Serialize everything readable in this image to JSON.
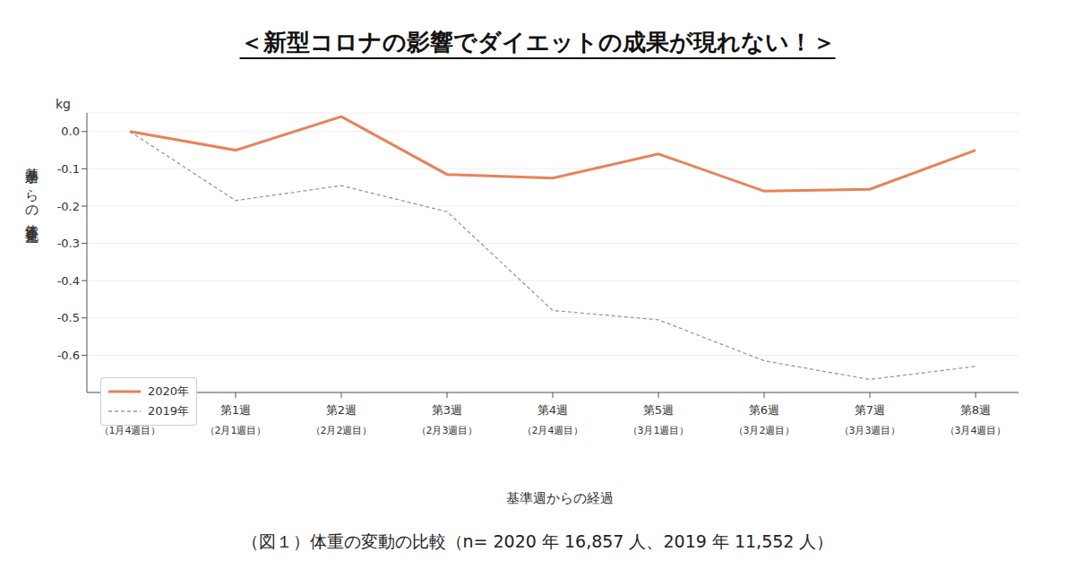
{
  "chart_data": {
    "type": "line",
    "title": "＜新型コロナの影響でダイエットの成果が現れない！＞",
    "caption": "（図１）体重の変動の比較（n= 2020 年 16,857 人、2019 年 11,552 人）",
    "x_label": "基準週からの経過",
    "y_label": "基準週からの体重変化量",
    "y_unit": "kg",
    "categories": [
      "基準週\n（1月4週目）",
      "第1週\n（2月1週目）",
      "第2週\n（2月2週目）",
      "第3週\n（2月3週目）",
      "第4週\n（2月4週目）",
      "第5週\n（3月1週目）",
      "第6週\n（3月2週目）",
      "第7週\n（3月3週目）",
      "第8週\n（3月4週目）"
    ],
    "series": [
      {
        "name": "2020年",
        "color": "#e8825a",
        "line_style": "solid",
        "values": [
          0,
          -0.05,
          0.04,
          -0.115,
          -0.125,
          -0.06,
          -0.16,
          -0.155,
          -0.05
        ]
      },
      {
        "name": "2019年",
        "color": "#999999",
        "line_style": "dashed",
        "values": [
          0,
          -0.185,
          -0.145,
          -0.215,
          -0.48,
          -0.505,
          -0.615,
          -0.665,
          -0.63
        ]
      }
    ],
    "ylim": [
      -0.7,
      0.05
    ],
    "yticks": [
      {
        "value": 0,
        "label": "0.0"
      },
      -0.1,
      -0.2,
      -0.3,
      -0.4,
      -0.5,
      -0.6
    ],
    "grid": true,
    "legend": "lower left"
  }
}
